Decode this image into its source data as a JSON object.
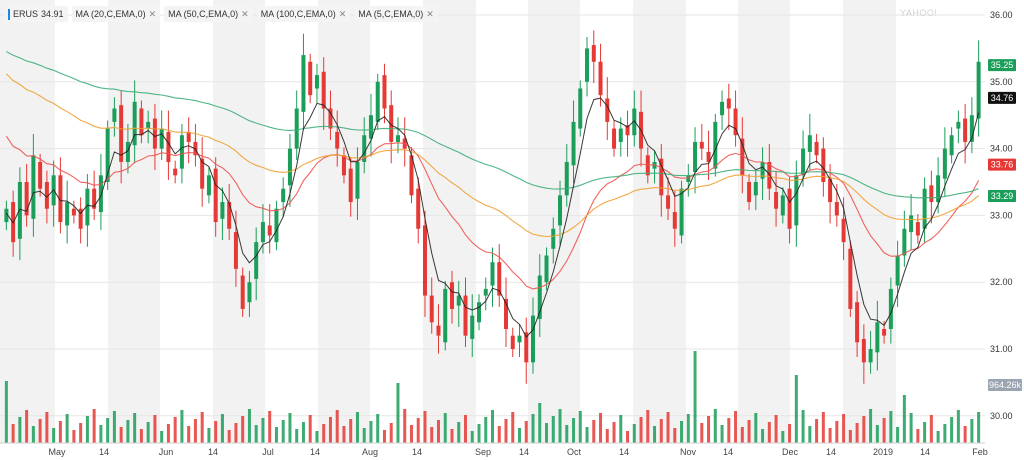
{
  "header": {
    "symbol": "ERUS",
    "price": "34.91",
    "indicators": [
      {
        "label": "MA (20,C,EMA,0)",
        "color": "#ef5350"
      },
      {
        "label": "MA (50,C,EMA,0)",
        "color": "#f0a030"
      },
      {
        "label": "MA (100,C,EMA,0)",
        "color": "#3cae78"
      },
      {
        "label": "MA (5,C,EMA,0)",
        "color": "#222222"
      }
    ],
    "close_glyph": "✕",
    "watermark": "YAHOO!"
  },
  "colors": {
    "up": "#1a9e59",
    "down": "#e53935",
    "band": "#f2f2f2",
    "grid": "#e6e6e6"
  },
  "chart_data": {
    "type": "candlestick",
    "ylim": [
      29.6,
      36.1
    ],
    "y_ticks": [
      "30.00",
      "31.00",
      "32.00",
      "33.00",
      "34.00",
      "35.00",
      "36.00"
    ],
    "x_ticks": [
      "May",
      "14",
      "Jun",
      "14",
      "Jul",
      "14",
      "Aug",
      "14",
      "Sep",
      "14",
      "Oct",
      "14",
      "Nov",
      "14",
      "Dec",
      "14",
      "2019",
      "14",
      "Feb"
    ],
    "tags": [
      {
        "value": 35.25,
        "label": "35.25",
        "color": "#1a9e59"
      },
      {
        "value": 34.76,
        "label": "34.76",
        "color": "#111111"
      },
      {
        "value": 33.76,
        "label": "33.76",
        "color": "#e53935"
      },
      {
        "value": 33.29,
        "label": "33.29",
        "color": "#1a9e59"
      }
    ],
    "volume_label": "964.26k",
    "closes": [
      33.1,
      32.6,
      33.5,
      33.0,
      33.9,
      33.4,
      33.1,
      33.6,
      32.9,
      33.2,
      33.0,
      32.8,
      33.4,
      33.1,
      33.6,
      34.3,
      34.6,
      33.8,
      34.1,
      34.7,
      34.2,
      34.4,
      34.0,
      34.3,
      33.8,
      33.6,
      34.2,
      34.1,
      33.9,
      33.4,
      33.6,
      32.9,
      33.2,
      32.8,
      32.2,
      31.6,
      32.0,
      32.6,
      32.9,
      32.7,
      33.1,
      33.4,
      34.0,
      34.6,
      35.4,
      34.8,
      35.1,
      34.6,
      34.3,
      34.0,
      33.6,
      33.2,
      33.8,
      34.2,
      34.5,
      35.0,
      34.6,
      34.1,
      34.2,
      34.0,
      33.3,
      32.8,
      31.8,
      31.4,
      31.2,
      31.9,
      31.6,
      31.8,
      31.2,
      31.5,
      31.7,
      31.9,
      32.3,
      31.8,
      31.3,
      31.0,
      31.2,
      30.8,
      31.5,
      32.1,
      32.4,
      32.8,
      33.3,
      33.8,
      34.4,
      34.9,
      35.5,
      35.3,
      34.8,
      34.4,
      34.0,
      34.3,
      34.2,
      34.6,
      34.0,
      33.6,
      33.8,
      33.3,
      33.1,
      32.8,
      33.4,
      33.6,
      34.1,
      34.0,
      33.8,
      34.4,
      34.7,
      34.6,
      34.2,
      33.6,
      33.2,
      33.5,
      33.8,
      33.4,
      33.1,
      33.3,
      32.8,
      33.6,
      34.0,
      34.2,
      33.9,
      33.5,
      33.2,
      33.0,
      32.6,
      31.6,
      31.1,
      30.8,
      31.0,
      31.4,
      31.2,
      31.9,
      32.4,
      32.8,
      33.0,
      32.7,
      33.4,
      33.2,
      33.6,
      34.0,
      34.2,
      34.4,
      34.1,
      34.5,
      35.3
    ]
  }
}
